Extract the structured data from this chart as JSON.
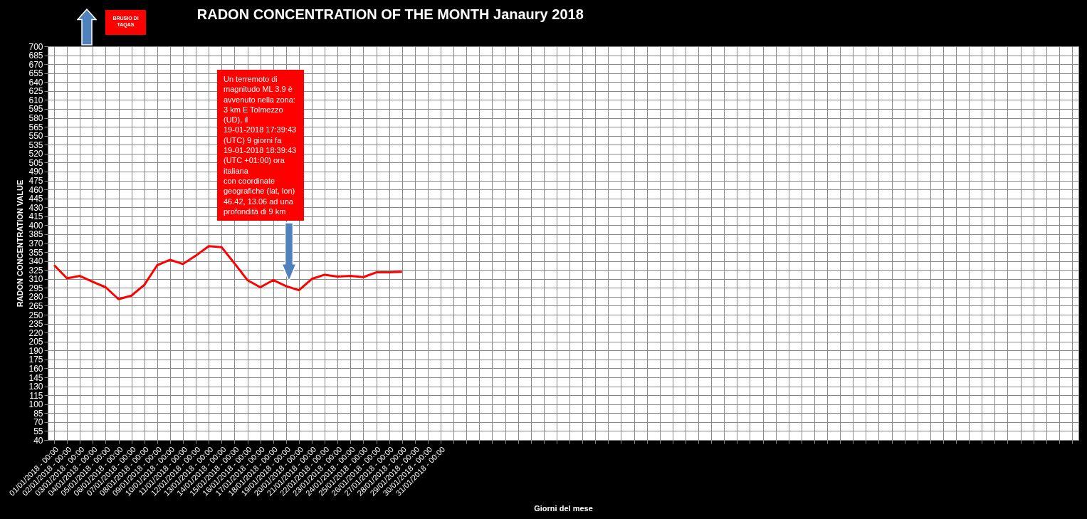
{
  "chart_data": {
    "type": "line",
    "title": "RADON CONCENTRATION OF THE MONTH  Janaury 2018",
    "xlabel": "Giorni del mese",
    "ylabel": "RADON CONCENTRATION VALUE",
    "categories": [
      "01/01/2018 - 00:00",
      "02/01/2018 - 00:00",
      "03/01/2018 - 00:00",
      "04/01/2018 - 00:00",
      "05/01/2018 - 00:00",
      "06/01/2018 - 00:00",
      "07/01/2018 - 00:00",
      "08/01/2018 - 00:00",
      "09/01/2018 - 00:00",
      "10/01/2018 - 00:00",
      "11/01/2018 - 00:00",
      "12/01/2018 - 00:00",
      "13/01/2018 - 00:00",
      "14/01/2018 - 00:00",
      "15/01/2018 - 00:00",
      "16/01/2018 - 00:00",
      "17/01/2018 - 00:00",
      "18/01/2018 - 00:00",
      "19/01/2018 - 00:00",
      "20/01/2018 - 00:00",
      "21/01/2018 - 00:00",
      "22/01/2018 - 00:00",
      "23/01/2018 - 00:00",
      "24/01/2018 - 00:00",
      "25/01/2018 - 00:00",
      "26/01/2018 - 00:00",
      "27/01/2018 - 00:00",
      "28/01/2018 - 00:00",
      "29/01/2018 - 00:00",
      "30/01/2018 - 00:00",
      "31/01/2018 - 00:00",
      null,
      null,
      null,
      null,
      null,
      null,
      null,
      null,
      null,
      null,
      null,
      null,
      null,
      null,
      null,
      null,
      null,
      null,
      null,
      null,
      null,
      null,
      null,
      null,
      null,
      null,
      null,
      null,
      null,
      null,
      null,
      null,
      null,
      null,
      null,
      null,
      null,
      null,
      null,
      null,
      null,
      null,
      null,
      null,
      null,
      null,
      null,
      null,
      null
    ],
    "series": [
      {
        "color": "#ff0000",
        "values": [
          333,
          311,
          315,
          305,
          296,
          276,
          282,
          300,
          333,
          342,
          335,
          349,
          365,
          363,
          336,
          308,
          296,
          308,
          298,
          291,
          310,
          317,
          314,
          315,
          313,
          321,
          321,
          322,
          null,
          null,
          null,
          null,
          null,
          null,
          null,
          null,
          null,
          null,
          null,
          null,
          null,
          null,
          null,
          null,
          null,
          null,
          null,
          null,
          null,
          null,
          null,
          null,
          null,
          null,
          null,
          null,
          null,
          null,
          null,
          null,
          null,
          null,
          null,
          null,
          null,
          null,
          null,
          null,
          null,
          null,
          null,
          null,
          null,
          null,
          null,
          null,
          null,
          null,
          null,
          null
        ]
      }
    ],
    "ylim": [
      40,
      700
    ],
    "yticks": [
      40,
      55,
      70,
      85,
      100,
      115,
      130,
      145,
      160,
      175,
      190,
      205,
      220,
      235,
      250,
      265,
      280,
      295,
      310,
      325,
      340,
      355,
      370,
      385,
      400,
      415,
      430,
      445,
      460,
      475,
      490,
      505,
      520,
      535,
      550,
      565,
      580,
      595,
      610,
      625,
      640,
      655,
      670,
      685,
      700
    ],
    "grid": true,
    "marker": "none",
    "line_style": "solid",
    "annotations": [
      "BRUSIO DI TAQAS",
      "Un terremoto di\nmagnitudo ML 3.9 è\navvenuto nella zona:\n3 km E Tolmezzo\n(UD), il\n19-01-2018 17:39:43\n(UTC) 9 giorni fa\n19-01-2018 18:39:43\n(UTC +01:00) ora\nitaliana\ncon coordinate\ngeografiche (lat, lon)\n46.42, 13.06 ad una\nprofondità di 9 km"
    ]
  }
}
